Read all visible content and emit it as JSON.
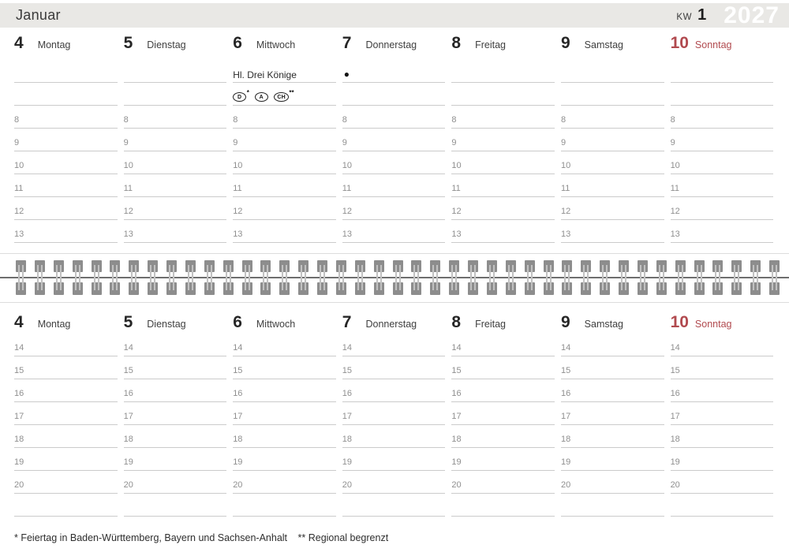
{
  "header": {
    "month": "Januar",
    "week_label": "KW",
    "week_number": "1",
    "year": "2027"
  },
  "days": [
    {
      "num": "4",
      "name": "Montag"
    },
    {
      "num": "5",
      "name": "Dienstag"
    },
    {
      "num": "6",
      "name": "Mittwoch",
      "holiday": "Hl. Drei Könige",
      "badges": [
        {
          "label": "D",
          "sup": "*"
        },
        {
          "label": "A",
          "sup": ""
        },
        {
          "label": "CH",
          "sup": "**"
        }
      ]
    },
    {
      "num": "7",
      "name": "Donnerstag",
      "moon": "●"
    },
    {
      "num": "8",
      "name": "Freitag"
    },
    {
      "num": "9",
      "name": "Samstag"
    },
    {
      "num": "10",
      "name": "Sonntag",
      "red": true
    }
  ],
  "hours_top": [
    "8",
    "9",
    "10",
    "11",
    "12",
    "13"
  ],
  "hours_bottom": [
    "14",
    "15",
    "16",
    "17",
    "18",
    "19",
    "20"
  ],
  "footnote": {
    "part1": "* Feiertag in Baden-Württemberg, Bayern und Sachsen-Anhalt",
    "part2": "** Regional begrenzt"
  },
  "colors": {
    "sunday_red": "#b14a4f",
    "header_bar": "#e9e8e5",
    "row_line": "#cbcbcb",
    "binding_gray": "#8d8d8d"
  }
}
